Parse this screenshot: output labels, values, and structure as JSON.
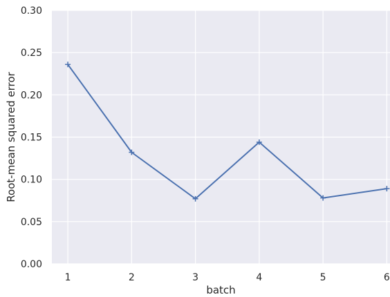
{
  "chart_data": {
    "type": "line",
    "title": "",
    "xlabel": "batch",
    "ylabel": "Root-mean squared error",
    "x": [
      1,
      2,
      3,
      4,
      5,
      6
    ],
    "series": [
      {
        "values": [
          0.236,
          0.132,
          0.077,
          0.144,
          0.078,
          0.089
        ]
      }
    ],
    "xticks": [
      1,
      2,
      3,
      4,
      5,
      6
    ],
    "yticks": [
      0.0,
      0.05,
      0.1,
      0.15,
      0.2,
      0.25,
      0.3
    ],
    "ytick_labels": [
      "0.00",
      "0.05",
      "0.10",
      "0.15",
      "0.20",
      "0.25",
      "0.30"
    ],
    "xlim": [
      0.75,
      6.05
    ],
    "ylim": [
      0,
      0.3
    ],
    "grid": true,
    "marker": "plus",
    "colors": {
      "background": "#eaeaf2",
      "grid": "#ffffff",
      "line": "#4c72b0",
      "text": "#262626"
    }
  }
}
